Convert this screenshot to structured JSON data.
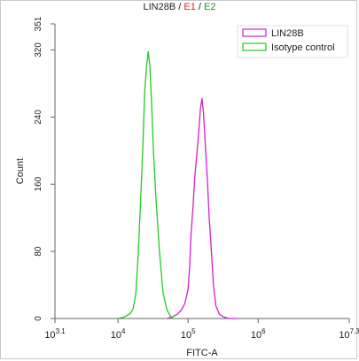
{
  "title": {
    "parts": [
      {
        "text": "LIN28B",
        "color": "#222222"
      },
      {
        "text": " / ",
        "color": "#222222"
      },
      {
        "text": "E1",
        "color": "#e02020"
      },
      {
        "text": " / ",
        "color": "#222222"
      },
      {
        "text": "E2",
        "color": "#1a9a1a"
      }
    ]
  },
  "chart_data": {
    "type": "line",
    "title": "LIN28B / E1 / E2",
    "xlabel": "FITC-A",
    "ylabel": "Count",
    "x_scale": "log",
    "xlim": [
      1259,
      19953000
    ],
    "ylim": [
      0,
      351
    ],
    "x_ticks": [
      {
        "value": 1259,
        "base": "10",
        "exp": "3.1"
      },
      {
        "value": 10000,
        "base": "10",
        "exp": "4"
      },
      {
        "value": 100000,
        "base": "10",
        "exp": "5"
      },
      {
        "value": 1000000,
        "base": "10",
        "exp": "6"
      },
      {
        "value": 19953000,
        "base": "10",
        "exp": "7.3"
      }
    ],
    "y_ticks": [
      0,
      80,
      160,
      240,
      320,
      351
    ],
    "legend_position": "top-right",
    "series": [
      {
        "name": "LIN28B",
        "color": "#d020d0",
        "points": [
          [
            50000,
            0
          ],
          [
            60000,
            2
          ],
          [
            70000,
            5
          ],
          [
            80000,
            10
          ],
          [
            90000,
            18
          ],
          [
            100000,
            35
          ],
          [
            105000,
            60
          ],
          [
            110000,
            100
          ],
          [
            118000,
            135
          ],
          [
            125000,
            170
          ],
          [
            133000,
            195
          ],
          [
            141000,
            220
          ],
          [
            150000,
            250
          ],
          [
            158000,
            262
          ],
          [
            166000,
            245
          ],
          [
            178000,
            200
          ],
          [
            190000,
            160
          ],
          [
            200000,
            120
          ],
          [
            215000,
            80
          ],
          [
            230000,
            40
          ],
          [
            250000,
            15
          ],
          [
            280000,
            5
          ],
          [
            320000,
            2
          ],
          [
            380000,
            0
          ],
          [
            500000,
            0
          ]
        ]
      },
      {
        "name": "Isotype control",
        "color": "#22cc22",
        "points": [
          [
            10000,
            0
          ],
          [
            12500,
            2
          ],
          [
            15000,
            6
          ],
          [
            16500,
            12
          ],
          [
            18000,
            30
          ],
          [
            19500,
            80
          ],
          [
            21000,
            140
          ],
          [
            22500,
            200
          ],
          [
            24000,
            270
          ],
          [
            25500,
            300
          ],
          [
            27000,
            318
          ],
          [
            28500,
            300
          ],
          [
            30000,
            260
          ],
          [
            32000,
            200
          ],
          [
            35000,
            140
          ],
          [
            39000,
            80
          ],
          [
            44000,
            30
          ],
          [
            50000,
            10
          ],
          [
            56000,
            3
          ],
          [
            60000,
            0
          ],
          [
            70000,
            0
          ]
        ]
      }
    ]
  },
  "colors": {
    "axis": "#666666",
    "text": "#222222"
  }
}
